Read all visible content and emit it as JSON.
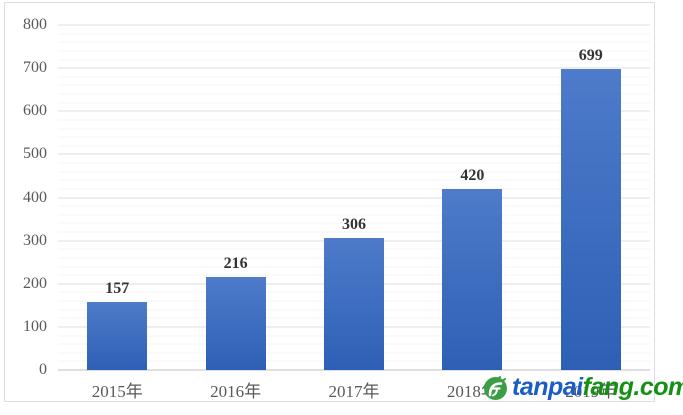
{
  "chart_data": {
    "type": "bar",
    "categories": [
      "2015年",
      "2016年",
      "2017年",
      "2018年",
      "2019年"
    ],
    "values": [
      157,
      216,
      306,
      420,
      699
    ],
    "title": "",
    "xlabel": "",
    "ylabel": "",
    "ylim": [
      0,
      800
    ],
    "y_tick_interval": 100,
    "y_minor_tick_interval": 20,
    "y_ticks": [
      "0",
      "100",
      "200",
      "300",
      "400",
      "500",
      "600",
      "700",
      "800"
    ],
    "grid": "horizontal-major-and-minor",
    "legend": "none",
    "bar_color_top": "#4e7bca",
    "bar_color_bottom": "#2d60b5",
    "value_label_color": "#333333",
    "axis_label_color": "#595959"
  },
  "watermark": {
    "text_primary": "tanpai",
    "text_secondary": "fang.com",
    "color_primary": "#1a5cc8",
    "color_secondary": "#149114",
    "icon": "tanpaifang-logo-circle",
    "icon_color": "#3a9e44"
  }
}
